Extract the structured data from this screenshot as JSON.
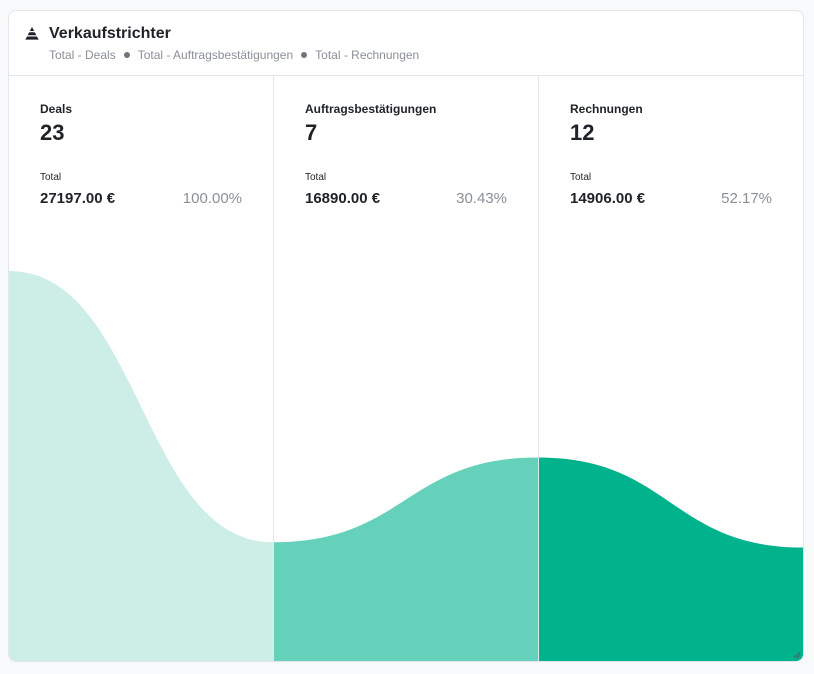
{
  "widget": {
    "title": "Verkaufstrichter",
    "icon": "funnel-icon",
    "breadcrumb": [
      "Total - Deals",
      "Total - Auftragsbestätigungen",
      "Total - Rechnungen"
    ]
  },
  "columns": [
    {
      "label": "Deals",
      "count": "23",
      "total_label": "Total",
      "amount": "27197.00 €",
      "percent": "100.00%"
    },
    {
      "label": "Auftragsbestätigungen",
      "count": "7",
      "total_label": "Total",
      "amount": "16890.00 €",
      "percent": "30.43%"
    },
    {
      "label": "Rechnungen",
      "count": "12",
      "total_label": "Total",
      "amount": "14906.00 €",
      "percent": "52.17%"
    }
  ],
  "chart_data": {
    "type": "area",
    "categories": [
      "Deals",
      "Auftragsbestätigungen",
      "Rechnungen"
    ],
    "values": [
      23,
      7,
      12
    ],
    "series_colors": [
      "#cdeee6",
      "#66d1ba",
      "#00b38c"
    ]
  }
}
